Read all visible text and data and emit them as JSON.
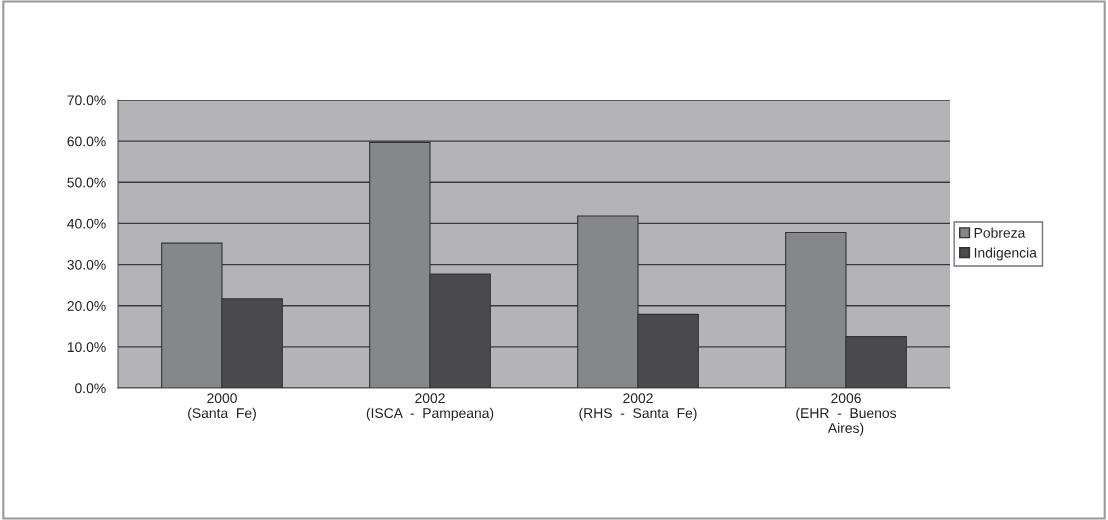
{
  "chart_data": {
    "type": "bar",
    "categories": [
      "2000\n(Santa  Fe)",
      "2002\n(ISCA  -  Pampeana)",
      "2002\n(RHS  -  Santa  Fe)",
      "2006\n(EHR  -  Buenos\nAires)"
    ],
    "series": [
      {
        "name": "Pobreza",
        "color": "#86878b",
        "values": [
          35.2,
          59.7,
          41.8,
          37.8
        ]
      },
      {
        "name": "Indigencia",
        "color": "#4b4b4d",
        "values": [
          21.7,
          27.7,
          17.9,
          12.5
        ]
      }
    ],
    "ylim": [
      0,
      70
    ],
    "yticks": [
      {
        "value": 0,
        "label": "0.0%"
      },
      {
        "value": 10,
        "label": "10.0%"
      },
      {
        "value": 20,
        "label": "20.0%"
      },
      {
        "value": 30,
        "label": "30.0%"
      },
      {
        "value": 40,
        "label": "40.0%"
      },
      {
        "value": 50,
        "label": "50.0%"
      },
      {
        "value": 60,
        "label": "60.0%"
      },
      {
        "value": 70,
        "label": "70.0%"
      }
    ],
    "grid": "y",
    "legend": "right"
  }
}
